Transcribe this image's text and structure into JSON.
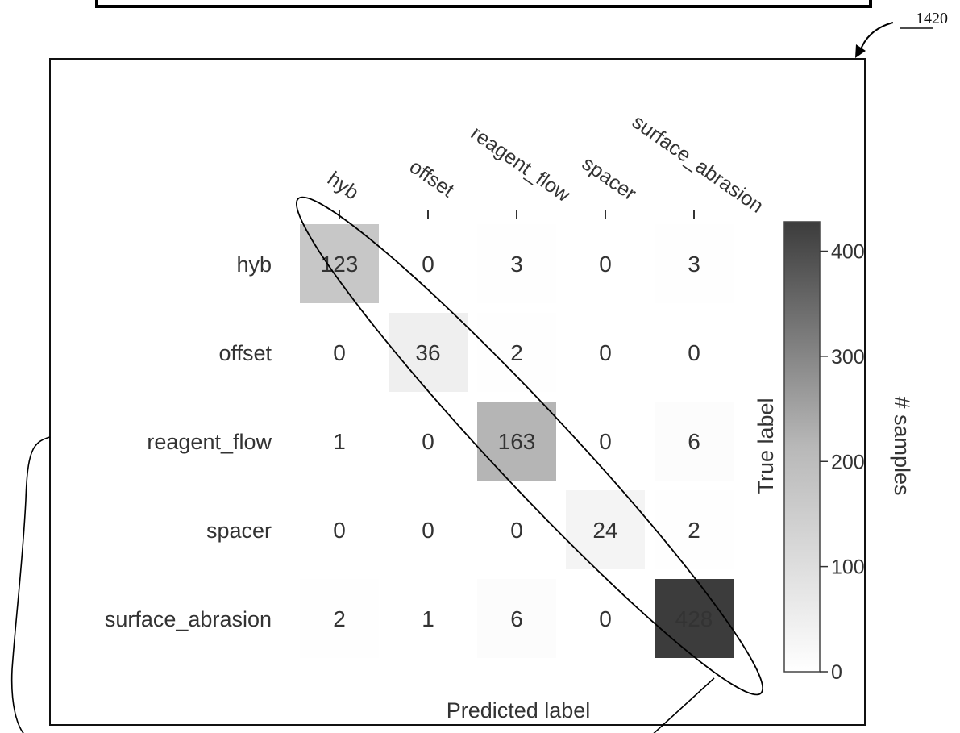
{
  "figure_ref": "1420",
  "chart_data": {
    "type": "heatmap",
    "xlabel": "Predicted label",
    "ylabel": "True label",
    "x_categories": [
      "hyb",
      "offset",
      "reagent_flow",
      "spacer",
      "surface_abrasion"
    ],
    "y_categories": [
      "hyb",
      "offset",
      "reagent_flow",
      "spacer",
      "surface_abrasion"
    ],
    "values": [
      [
        123,
        0,
        3,
        0,
        3
      ],
      [
        0,
        36,
        2,
        0,
        0
      ],
      [
        1,
        0,
        163,
        0,
        6
      ],
      [
        0,
        0,
        0,
        24,
        2
      ],
      [
        2,
        1,
        6,
        0,
        428
      ]
    ],
    "colorbar": {
      "label": "# samples",
      "range": [
        0,
        428
      ],
      "ticks": [
        "0",
        "100",
        "200",
        "300",
        "400"
      ],
      "tick_values": [
        0,
        100,
        200,
        300,
        400
      ]
    },
    "annotation": "ellipse around diagonal"
  }
}
